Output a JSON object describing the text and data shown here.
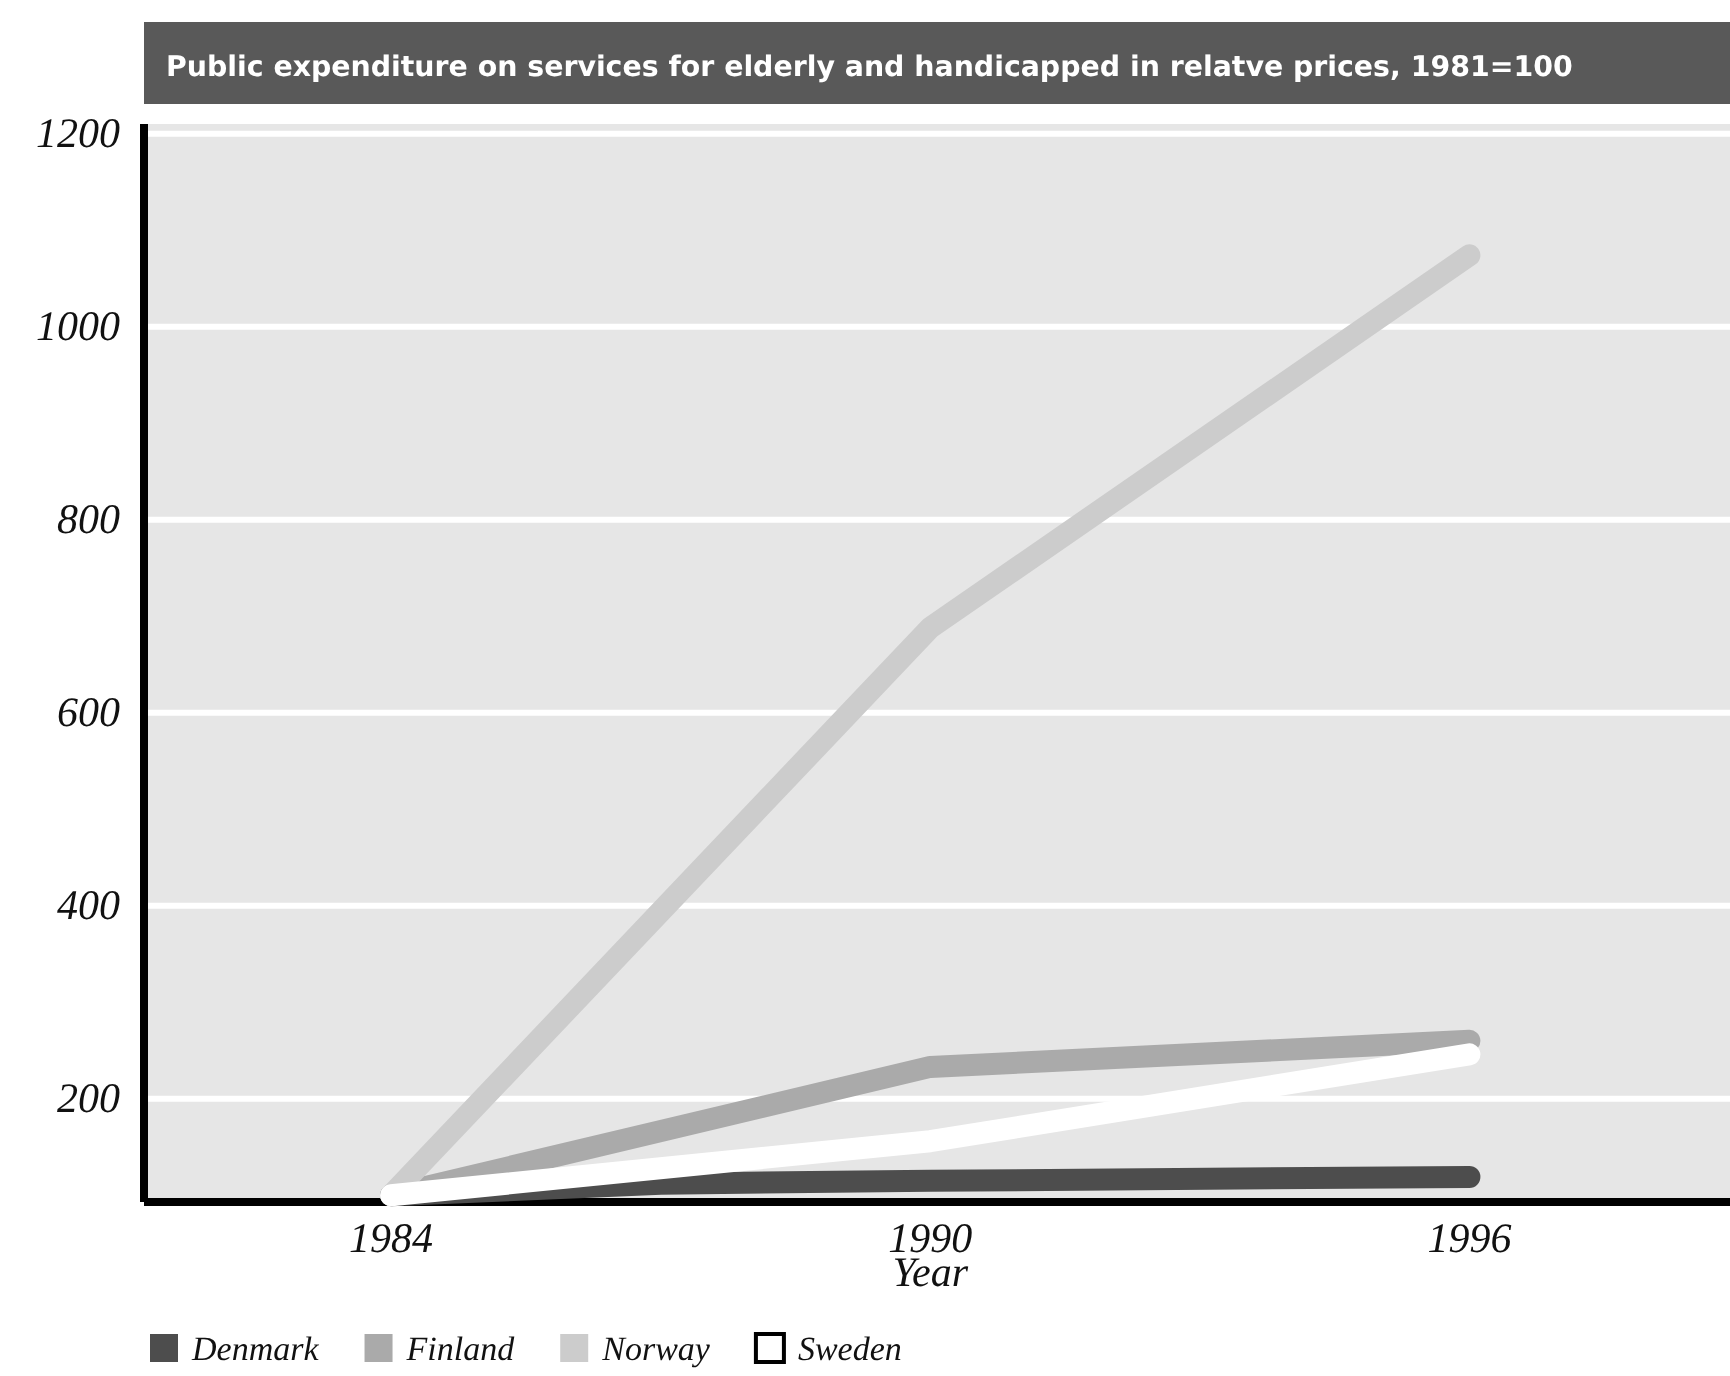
{
  "chart_data": {
    "type": "line",
    "title": "Public expenditure on services for elderly and handicapped in relatve prices, 1981=100",
    "xlabel": "Year",
    "x": [
      1984,
      1987,
      1990,
      1996
    ],
    "series": [
      {
        "name": "Denmark",
        "color": "#4d4d4d",
        "values": [
          100,
          112,
          115,
          119
        ]
      },
      {
        "name": "Finland",
        "color": "#aaaaaa",
        "values": [
          100,
          null,
          233,
          260
        ]
      },
      {
        "name": "Norway",
        "color": "#cccccc",
        "values": [
          100,
          null,
          688,
          1074
        ]
      },
      {
        "name": "Sweden",
        "color": "#ffffff",
        "values": [
          100,
          null,
          156,
          246
        ]
      }
    ],
    "xlim": [
      1981.25,
      1998.9
    ],
    "xticks": [
      1984,
      1990,
      1996
    ],
    "ylim": [
      93,
      1210
    ],
    "yticks": [
      200,
      400,
      600,
      800,
      1000,
      1200
    ],
    "grid": "y",
    "legend": "bottom",
    "marker": "none",
    "line_style": "solid"
  }
}
